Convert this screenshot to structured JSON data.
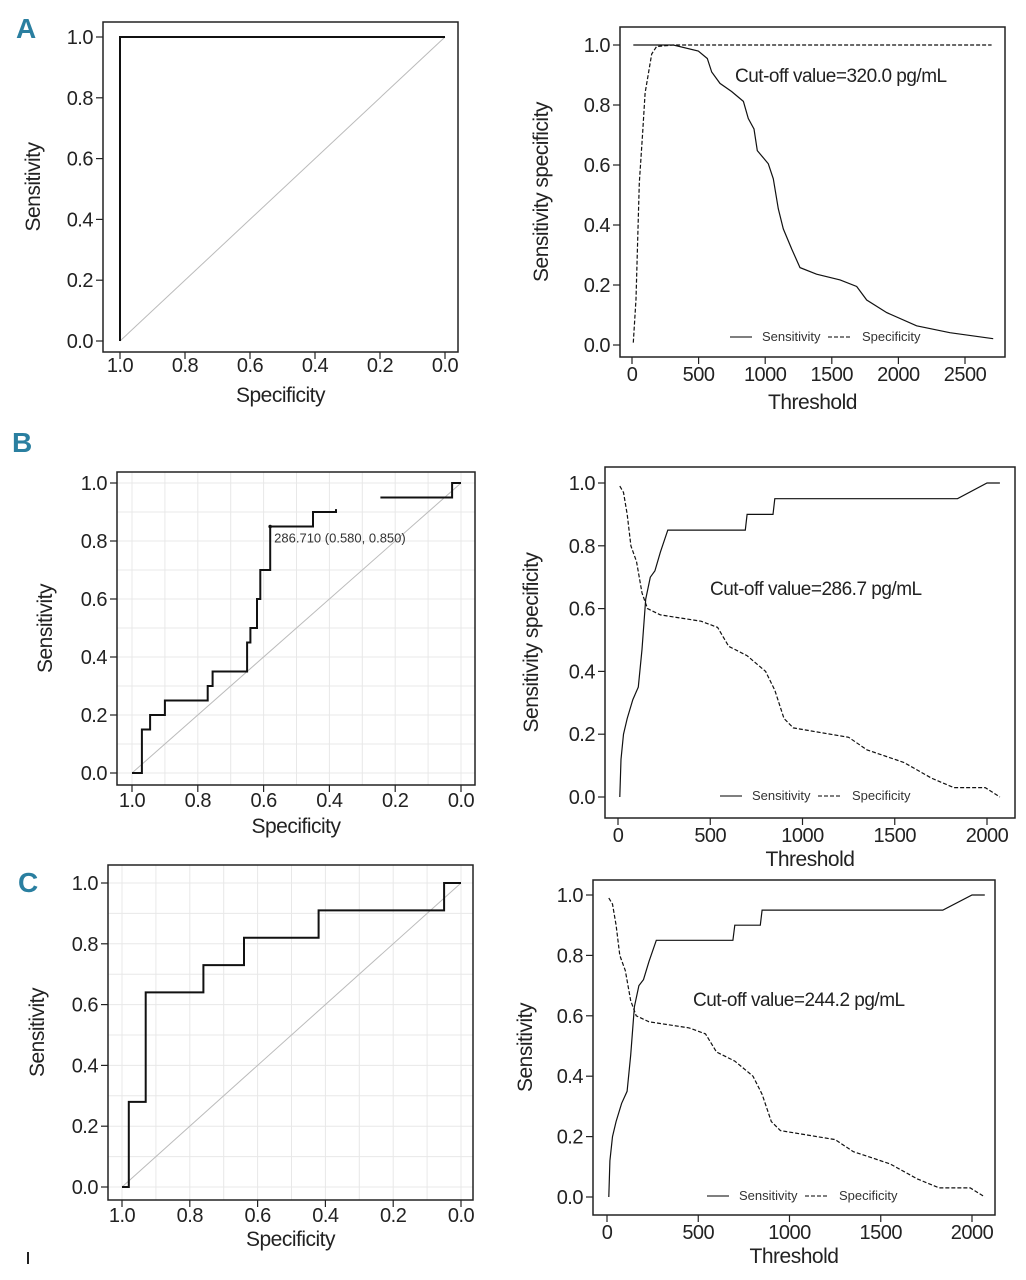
{
  "panel_letters": [
    "A",
    "B",
    "C"
  ],
  "chart_data": [
    {
      "panel": "A",
      "type": "line",
      "title": "",
      "xlabel": "Specificity",
      "ylabel": "Sensitivity",
      "xlim": [
        1.0,
        0.0
      ],
      "ylim": [
        0.0,
        1.0
      ],
      "xticks": [
        "1.0",
        "0.8",
        "0.6",
        "0.4",
        "0.2",
        "0.0"
      ],
      "xtick_values": [
        1,
        0.8,
        0.6,
        0.4,
        0.2,
        0
      ],
      "yticks": [
        "0.0",
        "0.2",
        "0.4",
        "0.6",
        "0.8",
        "1.0"
      ],
      "ytick_values": [
        0,
        0.2,
        0.4,
        0.6,
        0.8,
        1
      ],
      "grid": false,
      "reference_line": [
        [
          1,
          0
        ],
        [
          0,
          1
        ]
      ],
      "series": [
        {
          "name": "ROC",
          "style": "solid",
          "segments": [
            [
              [
                1,
                0
              ],
              [
                1,
                1
              ],
              [
                0,
                1
              ]
            ]
          ]
        }
      ]
    },
    {
      "panel": "A",
      "type": "line",
      "xlabel": "Threshold",
      "ylabel": "Sensitivity specificity",
      "xlim": [
        0,
        2800
      ],
      "ylim": [
        0,
        1
      ],
      "xticks": [
        "0",
        "500",
        "1000",
        "1500",
        "2000",
        "2500"
      ],
      "xtick_values": [
        0,
        500,
        1000,
        1500,
        2000,
        2500
      ],
      "yticks": [
        "0.0",
        "0.2",
        "0.4",
        "0.6",
        "0.8",
        "1.0"
      ],
      "ytick_values": [
        0,
        0.2,
        0.4,
        0.6,
        0.8,
        1
      ],
      "grid": false,
      "annotation": "Cut-off value=320.0 pg/mL",
      "legend": [
        "Sensitivity",
        "Specificity"
      ],
      "series": [
        {
          "name": "Sensitivity",
          "style": "solid",
          "segments": [
            [
              [
                10,
                1.0
              ],
              [
                310,
                1.0
              ],
              [
                498,
                0.98
              ],
              [
                565,
                0.955
              ],
              [
                598,
                0.91
              ],
              [
                661,
                0.872
              ],
              [
                748,
                0.845
              ],
              [
                836,
                0.812
              ],
              [
                873,
                0.755
              ],
              [
                916,
                0.72
              ],
              [
                941,
                0.648
              ],
              [
                1023,
                0.604
              ],
              [
                1061,
                0.554
              ],
              [
                1098,
                0.454
              ],
              [
                1136,
                0.387
              ],
              [
                1199,
                0.32
              ],
              [
                1261,
                0.258
              ],
              [
                1386,
                0.236
              ],
              [
                1562,
                0.217
              ],
              [
                1687,
                0.195
              ],
              [
                1762,
                0.15
              ],
              [
                1912,
                0.108
              ],
              [
                2137,
                0.064
              ],
              [
                2387,
                0.041
              ],
              [
                2712,
                0.021
              ]
            ]
          ]
        },
        {
          "name": "Specificity",
          "style": "dashed",
          "segments": [
            [
              [
                10,
                0.008
              ],
              [
                30,
                0.153
              ],
              [
                55,
                0.54
              ],
              [
                80,
                0.71
              ],
              [
                98,
                0.84
              ],
              [
                148,
                0.97
              ],
              [
                185,
                0.995
              ],
              [
                310,
                1.0
              ],
              [
                2700,
                1.0
              ]
            ]
          ]
        }
      ]
    },
    {
      "panel": "B",
      "type": "line",
      "xlabel": "Specificity",
      "ylabel": "Sensitivity",
      "xlim": [
        1.0,
        0.0
      ],
      "ylim": [
        0.0,
        1.0
      ],
      "xticks": [
        "1.0",
        "0.8",
        "0.6",
        "0.4",
        "0.2",
        "0.0"
      ],
      "xtick_values": [
        1,
        0.8,
        0.6,
        0.4,
        0.2,
        0
      ],
      "yticks": [
        "0.0",
        "0.2",
        "0.4",
        "0.6",
        "0.8",
        "1.0"
      ],
      "ytick_values": [
        0,
        0.2,
        0.4,
        0.6,
        0.8,
        1
      ],
      "grid": true,
      "reference_line": [
        [
          1,
          0
        ],
        [
          0,
          1
        ]
      ],
      "point_label": {
        "text": "286.710 (0.580, 0.850)",
        "x": 0.58,
        "y": 0.85
      },
      "series": [
        {
          "name": "ROC",
          "style": "solid",
          "segments": [
            [
              [
                1.0,
                0
              ],
              [
                0.97,
                0
              ],
              [
                0.97,
                0.15
              ],
              [
                0.945,
                0.15
              ],
              [
                0.945,
                0.2
              ],
              [
                0.9,
                0.2
              ],
              [
                0.9,
                0.25
              ],
              [
                0.77,
                0.25
              ],
              [
                0.77,
                0.3
              ],
              [
                0.755,
                0.3
              ],
              [
                0.755,
                0.35
              ],
              [
                0.65,
                0.35
              ],
              [
                0.65,
                0.45
              ],
              [
                0.64,
                0.45
              ],
              [
                0.64,
                0.5
              ],
              [
                0.62,
                0.5
              ],
              [
                0.62,
                0.6
              ],
              [
                0.61,
                0.6
              ],
              [
                0.61,
                0.7
              ],
              [
                0.58,
                0.7
              ],
              [
                0.58,
                0.85
              ],
              [
                0.45,
                0.85
              ],
              [
                0.45,
                0.9
              ],
              [
                0.38,
                0.9
              ],
              [
                0.38,
                0.91
              ]
            ],
            [
              [
                0.245,
                0.95
              ],
              [
                0.027,
                0.95
              ],
              [
                0.027,
                1.0
              ],
              [
                0.0,
                1.0
              ]
            ]
          ]
        }
      ]
    },
    {
      "panel": "B",
      "type": "line",
      "xlabel": "Threshold",
      "ylabel": "Sensitivity specificity",
      "xlim": [
        0,
        2100
      ],
      "ylim": [
        0,
        1
      ],
      "xticks": [
        "0",
        "500",
        "1000",
        "1500",
        "2000"
      ],
      "xtick_values": [
        0,
        500,
        1000,
        1500,
        2000
      ],
      "yticks": [
        "0.0",
        "0.2",
        "0.4",
        "0.6",
        "0.8",
        "1.0"
      ],
      "ytick_values": [
        0,
        0.2,
        0.4,
        0.6,
        0.8,
        1
      ],
      "grid": false,
      "annotation": "Cut-off value=286.7 pg/mL",
      "legend": [
        "Sensitivity",
        "Specificity"
      ],
      "series": [
        {
          "name": "Sensitivity",
          "style": "solid",
          "segments": [
            [
              [
                10,
                0
              ],
              [
                16,
                0.12
              ],
              [
                30,
                0.2
              ],
              [
                50,
                0.25
              ],
              [
                80,
                0.31
              ],
              [
                110,
                0.35
              ],
              [
                130,
                0.47
              ],
              [
                150,
                0.63
              ],
              [
                175,
                0.7
              ],
              [
                200,
                0.72
              ],
              [
                230,
                0.78
              ],
              [
                270,
                0.85
              ],
              [
                690,
                0.85
              ],
              [
                700,
                0.9
              ],
              [
                840,
                0.9
              ],
              [
                850,
                0.95
              ],
              [
                1840,
                0.95
              ],
              [
                2000,
                1.0
              ],
              [
                2070,
                1.0
              ]
            ]
          ]
        },
        {
          "name": "Specificity",
          "style": "dashed",
          "segments": [
            [
              [
                10,
                0.99
              ],
              [
                30,
                0.97
              ],
              [
                50,
                0.9
              ],
              [
                70,
                0.8
              ],
              [
                100,
                0.75
              ],
              [
                130,
                0.65
              ],
              [
                160,
                0.6
              ],
              [
                230,
                0.58
              ],
              [
                450,
                0.56
              ],
              [
                540,
                0.54
              ],
              [
                600,
                0.48
              ],
              [
                700,
                0.45
              ],
              [
                800,
                0.4
              ],
              [
                850,
                0.34
              ],
              [
                900,
                0.25
              ],
              [
                950,
                0.22
              ],
              [
                1250,
                0.19
              ],
              [
                1350,
                0.15
              ],
              [
                1550,
                0.11
              ],
              [
                1700,
                0.06
              ],
              [
                1820,
                0.03
              ],
              [
                1990,
                0.03
              ],
              [
                2070,
                0.0
              ]
            ]
          ]
        }
      ]
    },
    {
      "panel": "C",
      "type": "line",
      "xlabel": "Specificity",
      "ylabel": "Sensitivity",
      "xlim": [
        1.0,
        0.0
      ],
      "ylim": [
        0.0,
        1.0
      ],
      "xticks": [
        "1.0",
        "0.8",
        "0.6",
        "0.4",
        "0.2",
        "0.0"
      ],
      "xtick_values": [
        1,
        0.8,
        0.6,
        0.4,
        0.2,
        0
      ],
      "yticks": [
        "0.0",
        "0.2",
        "0.4",
        "0.6",
        "0.8",
        "1.0"
      ],
      "ytick_values": [
        0,
        0.2,
        0.4,
        0.6,
        0.8,
        1
      ],
      "grid": true,
      "reference_line": [
        [
          1,
          0
        ],
        [
          0,
          1
        ]
      ],
      "series": [
        {
          "name": "ROC",
          "style": "solid",
          "segments": [
            [
              [
                1.0,
                0
              ],
              [
                0.98,
                0
              ],
              [
                0.98,
                0.28
              ],
              [
                0.93,
                0.28
              ],
              [
                0.93,
                0.64
              ],
              [
                0.76,
                0.64
              ],
              [
                0.76,
                0.73
              ],
              [
                0.64,
                0.73
              ],
              [
                0.64,
                0.82
              ],
              [
                0.42,
                0.82
              ],
              [
                0.42,
                0.91
              ],
              [
                0.05,
                0.91
              ],
              [
                0.05,
                1.0
              ],
              [
                0.0,
                1.0
              ]
            ]
          ]
        }
      ]
    },
    {
      "panel": "C",
      "type": "line",
      "xlabel": "Threshold",
      "ylabel": "Sensitivity",
      "xlim": [
        0,
        2100
      ],
      "ylim": [
        0,
        1
      ],
      "xticks": [
        "0",
        "500",
        "1000",
        "1500",
        "2000"
      ],
      "xtick_values": [
        0,
        500,
        1000,
        1500,
        2000
      ],
      "yticks": [
        "0.0",
        "0.2",
        "0.4",
        "0.6",
        "0.8",
        "1.0"
      ],
      "ytick_values": [
        0,
        0.2,
        0.4,
        0.6,
        0.8,
        1
      ],
      "grid": false,
      "annotation": "Cut-off value=244.2 pg/mL",
      "legend": [
        "Sensitivity",
        "Specificity"
      ],
      "series": [
        {
          "name": "Sensitivity",
          "style": "solid",
          "segments": [
            [
              [
                10,
                0
              ],
              [
                16,
                0.12
              ],
              [
                30,
                0.2
              ],
              [
                50,
                0.25
              ],
              [
                80,
                0.31
              ],
              [
                110,
                0.35
              ],
              [
                130,
                0.47
              ],
              [
                150,
                0.63
              ],
              [
                175,
                0.7
              ],
              [
                200,
                0.72
              ],
              [
                230,
                0.78
              ],
              [
                270,
                0.85
              ],
              [
                690,
                0.85
              ],
              [
                700,
                0.9
              ],
              [
                840,
                0.9
              ],
              [
                850,
                0.95
              ],
              [
                1840,
                0.95
              ],
              [
                2000,
                1.0
              ],
              [
                2070,
                1.0
              ]
            ]
          ]
        },
        {
          "name": "Specificity",
          "style": "dashed",
          "segments": [
            [
              [
                10,
                0.99
              ],
              [
                30,
                0.97
              ],
              [
                50,
                0.9
              ],
              [
                70,
                0.8
              ],
              [
                100,
                0.75
              ],
              [
                130,
                0.65
              ],
              [
                160,
                0.6
              ],
              [
                230,
                0.58
              ],
              [
                450,
                0.56
              ],
              [
                540,
                0.54
              ],
              [
                600,
                0.48
              ],
              [
                700,
                0.45
              ],
              [
                800,
                0.4
              ],
              [
                850,
                0.34
              ],
              [
                900,
                0.25
              ],
              [
                950,
                0.22
              ],
              [
                1250,
                0.19
              ],
              [
                1350,
                0.15
              ],
              [
                1550,
                0.11
              ],
              [
                1700,
                0.06
              ],
              [
                1820,
                0.03
              ],
              [
                1990,
                0.03
              ],
              [
                2070,
                0.0
              ]
            ]
          ]
        }
      ]
    }
  ]
}
